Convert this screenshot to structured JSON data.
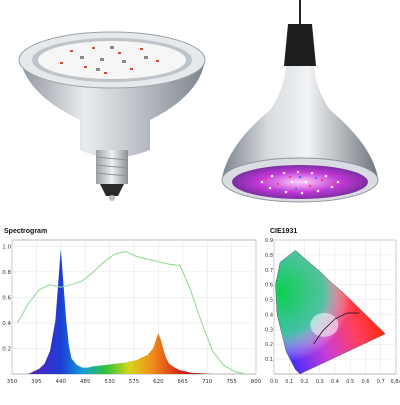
{
  "photos": {
    "left_bulb": "led-par-bulb-top-view",
    "right_bulb": "led-par-bulb-hanging-lit"
  },
  "colors": {
    "housing": "#c9cdd2",
    "board": "#f4f4f4",
    "led_magenta": "#d33ad0",
    "curve_green": "#8fd68f",
    "spectrum_blue": "#1a3fd6",
    "spectrum_red": "#e0641a"
  },
  "spectrogram": {
    "title": "Spectrogram",
    "x_ticks": [
      "350",
      "395",
      "440",
      "485",
      "530",
      "575",
      "620",
      "665",
      "710",
      "755",
      "800"
    ],
    "y_ticks": [
      "1.0",
      "0.8",
      "0.6",
      "0.4",
      "0.2"
    ]
  },
  "cie": {
    "title": "CIE1931",
    "x_ticks": [
      "0.0",
      "0.1",
      "0.2",
      "0.3",
      "0.4",
      "0.5",
      "0.6",
      "0.7",
      "0.8x"
    ],
    "y_ticks": [
      "0.9",
      "0.8",
      "0.7",
      "0.6",
      "0.5",
      "0.4",
      "0.3",
      "0.2",
      "0.1"
    ]
  },
  "chart_data": [
    {
      "type": "area",
      "title": "Spectrogram",
      "xlim": [
        350,
        800
      ],
      "ylim": [
        0,
        1.05
      ],
      "series": [
        {
          "x": [
            380,
            390,
            400,
            410,
            420,
            430,
            435,
            440,
            445,
            450,
            455,
            460,
            470,
            480,
            490,
            500,
            520,
            540,
            560,
            580,
            590,
            600,
            610,
            615,
            620,
            625,
            630,
            635,
            640,
            650,
            660,
            670,
            680,
            700,
            720
          ],
          "y": [
            0.0,
            0.02,
            0.04,
            0.08,
            0.18,
            0.42,
            0.7,
            0.98,
            0.7,
            0.42,
            0.22,
            0.12,
            0.07,
            0.05,
            0.05,
            0.06,
            0.07,
            0.08,
            0.09,
            0.11,
            0.13,
            0.15,
            0.2,
            0.26,
            0.32,
            0.26,
            0.18,
            0.12,
            0.08,
            0.05,
            0.03,
            0.02,
            0.01,
            0.005,
            0.0
          ]
        },
        {
          "x": [
            360,
            380,
            400,
            420,
            440,
            460,
            480,
            500,
            520,
            540,
            560,
            580,
            600,
            620,
            640,
            660,
            680,
            700,
            720,
            740,
            760,
            780
          ],
          "y": [
            0.4,
            0.55,
            0.66,
            0.7,
            0.68,
            0.7,
            0.73,
            0.8,
            0.88,
            0.94,
            0.96,
            0.92,
            0.9,
            0.88,
            0.86,
            0.85,
            0.65,
            0.4,
            0.18,
            0.07,
            0.02,
            0.0
          ]
        }
      ]
    },
    {
      "type": "scatter",
      "title": "CIE1931",
      "xlim": [
        0.0,
        0.8
      ],
      "ylim": [
        0.0,
        0.9
      ],
      "series": [
        {
          "x": [
            0.17,
            0.14,
            0.08,
            0.02,
            0.01,
            0.04,
            0.14,
            0.23,
            0.3,
            0.37,
            0.45,
            0.54,
            0.73,
            0.17
          ],
          "y": [
            0.0,
            0.03,
            0.15,
            0.4,
            0.6,
            0.75,
            0.83,
            0.75,
            0.69,
            0.62,
            0.55,
            0.46,
            0.27,
            0.0
          ]
        },
        {
          "x": [
            0.26,
            0.32,
            0.4,
            0.48,
            0.56
          ],
          "y": [
            0.2,
            0.29,
            0.37,
            0.41,
            0.41
          ]
        }
      ]
    }
  ]
}
